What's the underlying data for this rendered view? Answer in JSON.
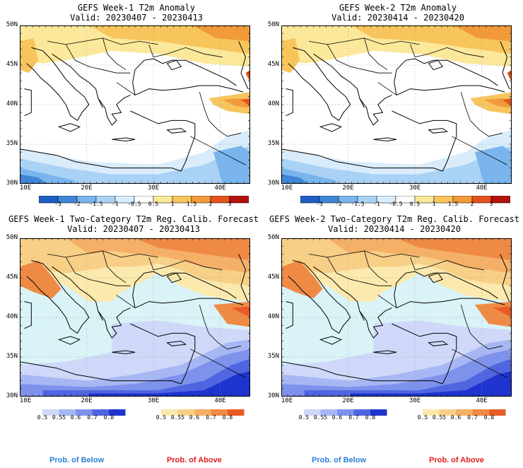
{
  "panels": [
    {
      "id": "p1",
      "title1": "GEFS Week-1 T2m Anomaly",
      "title2": "Valid: 20230407 - 20230413",
      "kind": "anomaly"
    },
    {
      "id": "p2",
      "title1": "GEFS Week-2 T2m Anomaly",
      "title2": "Valid: 20230414 - 20230420",
      "kind": "anomaly"
    },
    {
      "id": "p3",
      "title1": "GEFS Week-1 Two-Category T2m Reg. Calib. Forecast",
      "title2": "Valid: 20230407 - 20230413",
      "kind": "prob"
    },
    {
      "id": "p4",
      "title1": "GEFS Week-2 Two-Category T2m Reg. Calib. Forecast",
      "title2": "Valid: 20230414 - 20230420",
      "kind": "prob"
    }
  ],
  "axes": {
    "lat_labels": [
      "50N",
      "45N",
      "40N",
      "35N",
      "30N"
    ],
    "lon_labels": [
      "10E",
      "20E",
      "30E",
      "40E"
    ]
  },
  "anomaly_colorbar": {
    "labels": [
      "-3",
      "-2",
      "-1.5",
      "-1",
      "-0.5",
      "0.5",
      "1",
      "1.5",
      "2",
      "3"
    ],
    "colors": [
      "#1d5fc4",
      "#3f86d6",
      "#79b4ec",
      "#aad2f5",
      "#d8ecfb",
      "#ffffff",
      "#fbe89a",
      "#f7c55c",
      "#f29a3a",
      "#e4531d",
      "#b3110d"
    ]
  },
  "prob_colorbars": {
    "below": {
      "labels": [
        "0.5",
        "0.55",
        "0.6",
        "0.7",
        "0.8"
      ],
      "colors": [
        "#cfd8f8",
        "#a7b7f3",
        "#7e92ec",
        "#4f66e0",
        "#1f34cf"
      ]
    },
    "above": {
      "labels": [
        "0.5",
        "0.55",
        "0.6",
        "0.7",
        "0.8"
      ],
      "colors": [
        "#fbe9ad",
        "#f8cf87",
        "#f5b068",
        "#ef8a45",
        "#e85b26"
      ]
    },
    "below_text": "Prob. of Below",
    "above_text": "Prob. of Above",
    "below_color": "#2b7fd6",
    "above_color": "#e21c1c"
  },
  "map_colors": {
    "sea_prob": "#d9f3f7",
    "land_outline": "#000000"
  }
}
